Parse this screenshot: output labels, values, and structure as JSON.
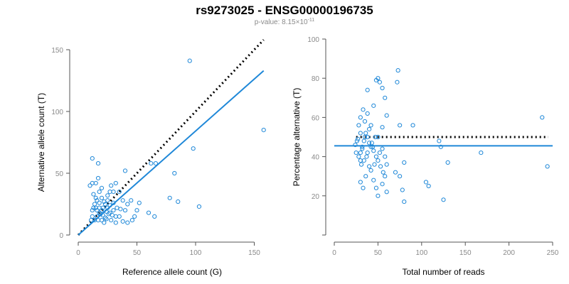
{
  "figure": {
    "title": "rs9273025 - ENSG00000196735",
    "subtitle_prefix": "p-value: 8.15×10",
    "subtitle_exponent": "-11",
    "colors": {
      "points": "#1f88d8",
      "fit": "#1f88d8",
      "reference": "#000000"
    }
  },
  "chart_data": [
    {
      "type": "scatter",
      "xlabel": "Reference allele count (G)",
      "ylabel": "Alternative allele count (T)",
      "xlim": [
        0,
        160
      ],
      "ylim": [
        0,
        150
      ],
      "xticks": [
        0,
        50,
        100,
        150
      ],
      "yticks": [
        0,
        50,
        100,
        150
      ],
      "grid": false,
      "fit_line": {
        "x": [
          0,
          158
        ],
        "y": [
          0,
          133
        ]
      },
      "reference_line": {
        "x": [
          0,
          158
        ],
        "y": [
          0,
          158
        ]
      },
      "points": [
        [
          12,
          62
        ],
        [
          17,
          58
        ],
        [
          12,
          42
        ],
        [
          10,
          40
        ],
        [
          15,
          42
        ],
        [
          17,
          46
        ],
        [
          20,
          38
        ],
        [
          18,
          35
        ],
        [
          13,
          33
        ],
        [
          15,
          30
        ],
        [
          16,
          28
        ],
        [
          20,
          30
        ],
        [
          22,
          27
        ],
        [
          25,
          28
        ],
        [
          28,
          40
        ],
        [
          32,
          42
        ],
        [
          40,
          52
        ],
        [
          30,
          35
        ],
        [
          25,
          22
        ],
        [
          27,
          18
        ],
        [
          30,
          20
        ],
        [
          32,
          15
        ],
        [
          20,
          20
        ],
        [
          18,
          18
        ],
        [
          16,
          15
        ],
        [
          14,
          12
        ],
        [
          12,
          15
        ],
        [
          15,
          22
        ],
        [
          18,
          22
        ],
        [
          23,
          25
        ],
        [
          25,
          32
        ],
        [
          27,
          35
        ],
        [
          35,
          35
        ],
        [
          38,
          28
        ],
        [
          42,
          25
        ],
        [
          45,
          28
        ],
        [
          40,
          20
        ],
        [
          35,
          15
        ],
        [
          32,
          10
        ],
        [
          28,
          12
        ],
        [
          38,
          11
        ],
        [
          42,
          10
        ],
        [
          46,
          12
        ],
        [
          50,
          20
        ],
        [
          48,
          15
        ],
        [
          52,
          26
        ],
        [
          60,
          18
        ],
        [
          65,
          15
        ],
        [
          62,
          58
        ],
        [
          66,
          58
        ],
        [
          78,
          30
        ],
        [
          82,
          50
        ],
        [
          85,
          27
        ],
        [
          95,
          141
        ],
        [
          98,
          70
        ],
        [
          103,
          23
        ],
        [
          158,
          85
        ],
        [
          12,
          20
        ],
        [
          14,
          25
        ],
        [
          17,
          12
        ],
        [
          19,
          17
        ],
        [
          21,
          16
        ],
        [
          23,
          14
        ],
        [
          24,
          13
        ],
        [
          26,
          17
        ],
        [
          29,
          16
        ],
        [
          11,
          12
        ],
        [
          13,
          22
        ],
        [
          16,
          20
        ],
        [
          18,
          26
        ],
        [
          21,
          22
        ],
        [
          24,
          19
        ],
        [
          27,
          24
        ],
        [
          30,
          26
        ],
        [
          33,
          22
        ],
        [
          36,
          21
        ],
        [
          22,
          10
        ],
        [
          20,
          12
        ]
      ]
    },
    {
      "type": "scatter",
      "xlabel": "Total number of reads",
      "ylabel": "Percentage alternative (T)",
      "xlim": [
        0,
        250
      ],
      "ylim": [
        0,
        100
      ],
      "xticks": [
        0,
        50,
        100,
        150,
        200,
        250
      ],
      "yticks": [
        20,
        40,
        60,
        80,
        100
      ],
      "grid": false,
      "fit_line": {
        "x": [
          0,
          250
        ],
        "y": [
          45.5,
          45.5
        ]
      },
      "reference_line": {
        "x": [
          25,
          245
        ],
        "y": [
          50,
          50
        ]
      },
      "points": [
        [
          28,
          56
        ],
        [
          30,
          52
        ],
        [
          26,
          48
        ],
        [
          25,
          42
        ],
        [
          24,
          46
        ],
        [
          30,
          42
        ],
        [
          32,
          44
        ],
        [
          35,
          50
        ],
        [
          32,
          45
        ],
        [
          28,
          40
        ],
        [
          30,
          38
        ],
        [
          34,
          48
        ],
        [
          36,
          52
        ],
        [
          38,
          50
        ],
        [
          40,
          47
        ],
        [
          42,
          45
        ],
        [
          45,
          43
        ],
        [
          48,
          40
        ],
        [
          50,
          38
        ],
        [
          52,
          42
        ],
        [
          40,
          35
        ],
        [
          42,
          33
        ],
        [
          45,
          28
        ],
        [
          48,
          24
        ],
        [
          50,
          20
        ],
        [
          36,
          30
        ],
        [
          33,
          24
        ],
        [
          30,
          27
        ],
        [
          34,
          38
        ],
        [
          38,
          42
        ],
        [
          30,
          60
        ],
        [
          33,
          64
        ],
        [
          35,
          58
        ],
        [
          38,
          62
        ],
        [
          40,
          54
        ],
        [
          42,
          56
        ],
        [
          38,
          74
        ],
        [
          45,
          66
        ],
        [
          48,
          79
        ],
        [
          50,
          80
        ],
        [
          52,
          78
        ],
        [
          55,
          75
        ],
        [
          58,
          70
        ],
        [
          60,
          61
        ],
        [
          55,
          55
        ],
        [
          50,
          50
        ],
        [
          55,
          44
        ],
        [
          58,
          40
        ],
        [
          60,
          36
        ],
        [
          58,
          30
        ],
        [
          55,
          26
        ],
        [
          60,
          22
        ],
        [
          70,
          32
        ],
        [
          75,
          30
        ],
        [
          78,
          23
        ],
        [
          80,
          17
        ],
        [
          72,
          78
        ],
        [
          73,
          84
        ],
        [
          75,
          56
        ],
        [
          80,
          37
        ],
        [
          90,
          56
        ],
        [
          105,
          27
        ],
        [
          108,
          25
        ],
        [
          120,
          48
        ],
        [
          122,
          45
        ],
        [
          125,
          18
        ],
        [
          130,
          37
        ],
        [
          168,
          42
        ],
        [
          238,
          60
        ],
        [
          244,
          35
        ],
        [
          46,
          36
        ],
        [
          44,
          45
        ],
        [
          53,
          35
        ],
        [
          56,
          32
        ],
        [
          47,
          50
        ],
        [
          27,
          49
        ],
        [
          31,
          36
        ],
        [
          37,
          40
        ],
        [
          43,
          47
        ]
      ]
    }
  ]
}
